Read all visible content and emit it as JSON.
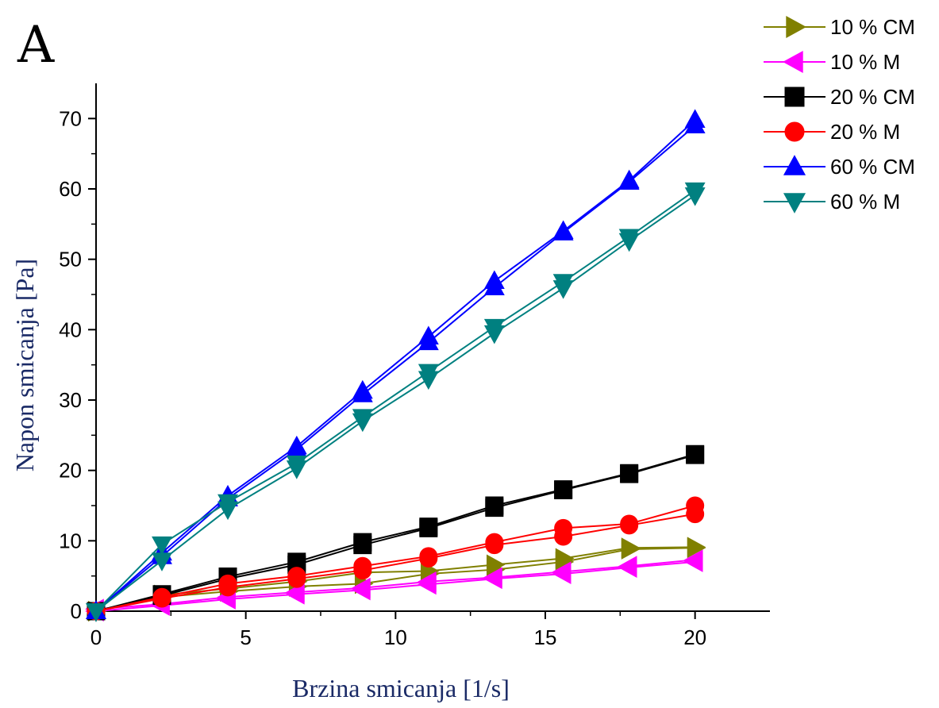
{
  "chart_data": {
    "type": "line",
    "panel_label": "A",
    "xlabel": "Brzina smicanja  [1/s]",
    "ylabel": "Napon smicanja [Pa]",
    "xlim": [
      0,
      22.5
    ],
    "ylim": [
      0,
      75
    ],
    "xticks": [
      0,
      5,
      10,
      15,
      20
    ],
    "yticks": [
      0,
      10,
      20,
      30,
      40,
      50,
      60,
      70
    ],
    "grid": false,
    "legend_position": "top-right, outside plot",
    "x": [
      0,
      2.2,
      4.4,
      6.7,
      8.9,
      11.1,
      13.3,
      15.6,
      17.8,
      20
    ],
    "series": [
      {
        "name": "10 % CM",
        "color": "#808000",
        "marker": "triangle-right",
        "values_up": [
          0,
          2.3,
          3.2,
          4.2,
          5.5,
          5.7,
          6.6,
          7.5,
          9.0,
          9.1
        ],
        "values_down": [
          0,
          2.0,
          2.8,
          3.5,
          3.9,
          5.3,
          5.9,
          7.0,
          8.8,
          9.0
        ]
      },
      {
        "name": "10 % M",
        "color": "#ff00ff",
        "marker": "triangle-left",
        "values_up": [
          0.3,
          1.0,
          2.0,
          2.7,
          3.3,
          4.2,
          4.8,
          5.6,
          6.4,
          7.3
        ],
        "values_down": [
          0,
          0.8,
          1.7,
          2.4,
          3.0,
          3.8,
          4.6,
          5.3,
          6.2,
          7.0
        ]
      },
      {
        "name": "20 % CM",
        "color": "#000000",
        "marker": "square",
        "values_up": [
          0,
          2.4,
          4.9,
          7.0,
          9.8,
          12.0,
          15.0,
          17.3,
          19.6,
          22.3
        ],
        "values_down": [
          0,
          2.2,
          4.6,
          6.6,
          9.4,
          11.8,
          14.7,
          17.2,
          19.5,
          22.2
        ]
      },
      {
        "name": "20 % M",
        "color": "#ff0000",
        "marker": "circle",
        "values_up": [
          0,
          2.0,
          3.9,
          5.0,
          6.4,
          7.8,
          9.8,
          11.8,
          12.4,
          15.0
        ],
        "values_down": [
          0,
          1.8,
          3.4,
          4.6,
          5.8,
          7.5,
          9.4,
          10.6,
          12.2,
          13.8
        ]
      },
      {
        "name": "60 % CM",
        "color": "#0000ff",
        "marker": "triangle-up",
        "values_up": [
          0,
          8.3,
          16.4,
          23.4,
          31.3,
          39.0,
          46.9,
          54.0,
          61.2,
          69.8
        ],
        "values_down": [
          0,
          7.8,
          16.0,
          23.0,
          30.8,
          38.2,
          46.0,
          53.8,
          61.0,
          69.0
        ]
      },
      {
        "name": "60 % M",
        "color": "#008080",
        "marker": "triangle-down",
        "values_up": [
          0,
          9.5,
          15.5,
          21.0,
          27.6,
          34.0,
          40.4,
          46.8,
          53.2,
          59.8
        ],
        "values_down": [
          0,
          7.2,
          14.5,
          20.3,
          27.0,
          33.0,
          39.5,
          45.9,
          52.6,
          59.1
        ]
      }
    ]
  }
}
